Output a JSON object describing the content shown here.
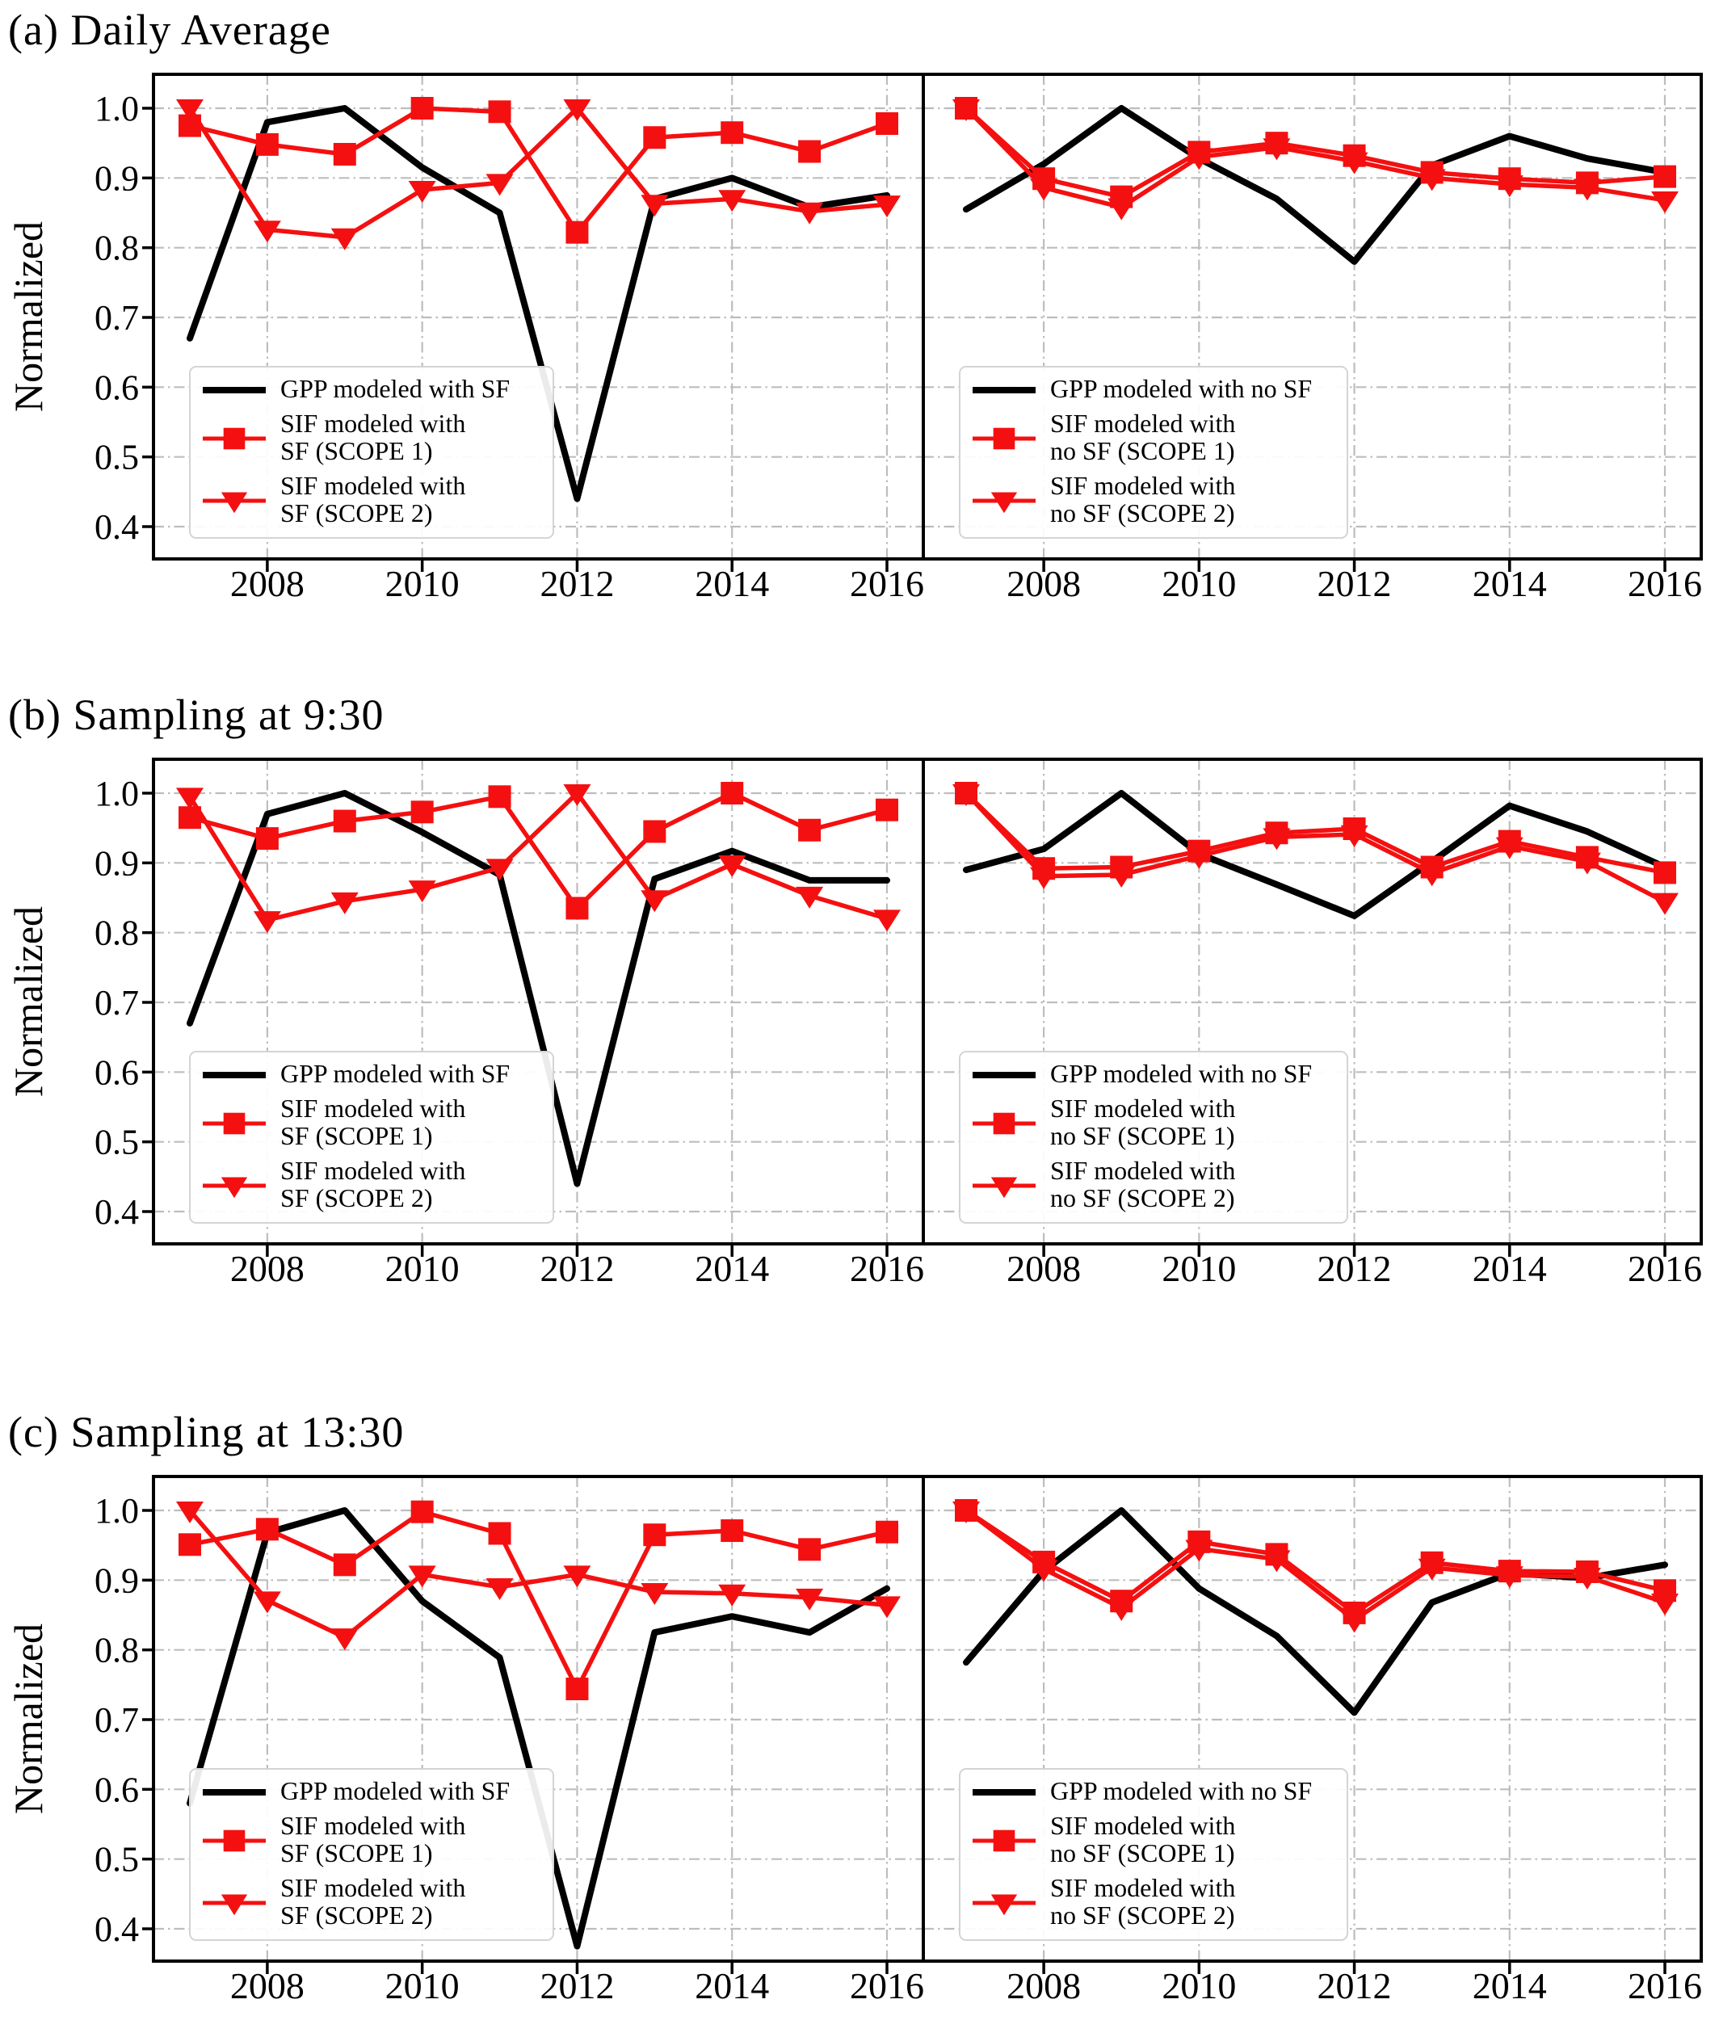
{
  "figure": {
    "ylabel": "Normalized",
    "yticks": [
      "1.0",
      "0.9",
      "0.8",
      "0.7",
      "0.6",
      "0.5",
      "0.4"
    ],
    "xticks": [
      2008,
      2010,
      2012,
      2014,
      2016
    ],
    "colors": {
      "gpp_line": "#000000",
      "sif_line": "#f41010",
      "grid": "#bdbdbd",
      "spine": "#000000",
      "legend_border": "#d4d4d4",
      "text": "#000000"
    },
    "grid": true,
    "grid_style": "dash-dot",
    "legend_position": "lower left"
  },
  "rows": [
    {
      "title": "(a) Daily Average"
    },
    {
      "title": "(b) Sampling at 9:30"
    },
    {
      "title": "(c) Sampling at 13:30"
    }
  ],
  "chart_data": [
    {
      "id": "a-left",
      "row": 0,
      "side": "left",
      "type": "line",
      "x": [
        2007,
        2008,
        2009,
        2010,
        2011,
        2012,
        2013,
        2014,
        2015,
        2016
      ],
      "xticks": [
        2008,
        2010,
        2012,
        2014,
        2016
      ],
      "yticks": [
        "1.0",
        "0.9",
        "0.8",
        "0.7",
        "0.6",
        "0.5",
        "0.4"
      ],
      "ylim": [
        0.354,
        1.049
      ],
      "ylabel": "Normalized",
      "series": [
        {
          "name": "GPP modeled with SF",
          "color": "#000000",
          "marker": "none",
          "line_width": 8,
          "values": [
            0.67,
            0.98,
            1.0,
            0.915,
            0.85,
            0.44,
            0.87,
            0.9,
            0.858,
            0.875
          ]
        },
        {
          "name": "SIF modeled with SF (SCOPE 2)",
          "color": "#f41010",
          "marker": "triangle-down",
          "line_width": 5.5,
          "values": [
            1.0,
            0.826,
            0.815,
            0.883,
            0.893,
            1.0,
            0.863,
            0.87,
            0.852,
            0.862
          ]
        },
        {
          "name": "SIF modeled with SF (SCOPE 1)",
          "color": "#f41010",
          "marker": "square",
          "line_width": 5.5,
          "values": [
            0.975,
            0.948,
            0.934,
            1.0,
            0.995,
            0.822,
            0.958,
            0.965,
            0.938,
            0.978
          ]
        }
      ],
      "legend": [
        {
          "series": 0,
          "lines": [
            "GPP modeled with SF"
          ]
        },
        {
          "series": 2,
          "lines": [
            "SIF modeled with",
            "SF (SCOPE 1)"
          ]
        },
        {
          "series": 1,
          "lines": [
            "SIF modeled with",
            "SF (SCOPE 2)"
          ]
        }
      ]
    },
    {
      "id": "a-right",
      "row": 0,
      "side": "right",
      "type": "line",
      "x": [
        2007,
        2008,
        2009,
        2010,
        2011,
        2012,
        2013,
        2014,
        2015,
        2016
      ],
      "xticks": [
        2008,
        2010,
        2012,
        2014,
        2016
      ],
      "yticks": [
        "1.0",
        "0.9",
        "0.8",
        "0.7",
        "0.6",
        "0.5",
        "0.4"
      ],
      "ylim": [
        0.354,
        1.049
      ],
      "series": [
        {
          "name": "GPP modeled with no SF",
          "color": "#000000",
          "marker": "none",
          "line_width": 8,
          "values": [
            0.855,
            0.92,
            1.0,
            0.928,
            0.87,
            0.78,
            0.918,
            0.96,
            0.928,
            0.908
          ]
        },
        {
          "name": "SIF modeled with no SF (SCOPE 2)",
          "color": "#f41010",
          "marker": "triangle-down",
          "line_width": 5.5,
          "values": [
            1.0,
            0.886,
            0.858,
            0.93,
            0.944,
            0.924,
            0.9,
            0.891,
            0.886,
            0.868
          ]
        },
        {
          "name": "SIF modeled with no SF (SCOPE 1)",
          "color": "#f41010",
          "marker": "square",
          "line_width": 5.5,
          "values": [
            1.0,
            0.899,
            0.873,
            0.937,
            0.95,
            0.932,
            0.908,
            0.899,
            0.893,
            0.902
          ]
        }
      ],
      "legend": [
        {
          "series": 0,
          "lines": [
            "GPP modeled with no SF"
          ]
        },
        {
          "series": 2,
          "lines": [
            "SIF modeled with",
            "no SF (SCOPE 1)"
          ]
        },
        {
          "series": 1,
          "lines": [
            "SIF modeled with",
            "no SF (SCOPE 2)"
          ]
        }
      ]
    },
    {
      "id": "b-left",
      "row": 1,
      "side": "left",
      "type": "line",
      "x": [
        2007,
        2008,
        2009,
        2010,
        2011,
        2012,
        2013,
        2014,
        2015,
        2016
      ],
      "xticks": [
        2008,
        2010,
        2012,
        2014,
        2016
      ],
      "yticks": [
        "1.0",
        "0.9",
        "0.8",
        "0.7",
        "0.6",
        "0.5",
        "0.4"
      ],
      "ylim": [
        0.354,
        1.049
      ],
      "ylabel": "Normalized",
      "series": [
        {
          "name": "GPP modeled with SF",
          "color": "#000000",
          "marker": "none",
          "line_width": 8,
          "values": [
            0.67,
            0.97,
            1.0,
            0.944,
            0.883,
            0.44,
            0.877,
            0.917,
            0.875,
            0.875
          ]
        },
        {
          "name": "SIF modeled with SF (SCOPE 2)",
          "color": "#f41010",
          "marker": "triangle-down",
          "line_width": 5.5,
          "values": [
            0.995,
            0.818,
            0.845,
            0.862,
            0.893,
            1.0,
            0.848,
            0.898,
            0.853,
            0.82
          ]
        },
        {
          "name": "SIF modeled with SF (SCOPE 1)",
          "color": "#f41010",
          "marker": "square",
          "line_width": 5.5,
          "values": [
            0.965,
            0.935,
            0.96,
            0.973,
            0.995,
            0.835,
            0.945,
            1.0,
            0.947,
            0.976
          ]
        }
      ],
      "legend": [
        {
          "series": 0,
          "lines": [
            "GPP modeled with SF"
          ]
        },
        {
          "series": 2,
          "lines": [
            "SIF modeled with",
            "SF (SCOPE 1)"
          ]
        },
        {
          "series": 1,
          "lines": [
            "SIF modeled with",
            "SF (SCOPE 2)"
          ]
        }
      ]
    },
    {
      "id": "b-right",
      "row": 1,
      "side": "right",
      "type": "line",
      "x": [
        2007,
        2008,
        2009,
        2010,
        2011,
        2012,
        2013,
        2014,
        2015,
        2016
      ],
      "xticks": [
        2008,
        2010,
        2012,
        2014,
        2016
      ],
      "yticks": [
        "1.0",
        "0.9",
        "0.8",
        "0.7",
        "0.6",
        "0.5",
        "0.4"
      ],
      "ylim": [
        0.354,
        1.049
      ],
      "series": [
        {
          "name": "GPP modeled with no SF",
          "color": "#000000",
          "marker": "none",
          "line_width": 8,
          "values": [
            0.89,
            0.92,
            1.0,
            0.913,
            0.869,
            0.824,
            0.902,
            0.982,
            0.945,
            0.894
          ]
        },
        {
          "name": "SIF modeled with no SF (SCOPE 2)",
          "color": "#f41010",
          "marker": "triangle-down",
          "line_width": 5.5,
          "values": [
            1.0,
            0.881,
            0.883,
            0.91,
            0.937,
            0.941,
            0.885,
            0.924,
            0.902,
            0.844
          ]
        },
        {
          "name": "SIF modeled with no SF (SCOPE 1)",
          "color": "#f41010",
          "marker": "square",
          "line_width": 5.5,
          "values": [
            1.0,
            0.892,
            0.894,
            0.917,
            0.943,
            0.949,
            0.894,
            0.931,
            0.908,
            0.886
          ]
        }
      ],
      "legend": [
        {
          "series": 0,
          "lines": [
            "GPP modeled with no SF"
          ]
        },
        {
          "series": 2,
          "lines": [
            "SIF modeled with",
            "no SF (SCOPE 1)"
          ]
        },
        {
          "series": 1,
          "lines": [
            "SIF modeled with",
            "no SF (SCOPE 2)"
          ]
        }
      ]
    },
    {
      "id": "c-left",
      "row": 2,
      "side": "left",
      "type": "line",
      "x": [
        2007,
        2008,
        2009,
        2010,
        2011,
        2012,
        2013,
        2014,
        2015,
        2016
      ],
      "xticks": [
        2008,
        2010,
        2012,
        2014,
        2016
      ],
      "yticks": [
        "1.0",
        "0.9",
        "0.8",
        "0.7",
        "0.6",
        "0.5",
        "0.4"
      ],
      "ylim": [
        0.354,
        1.049
      ],
      "ylabel": "Normalized",
      "series": [
        {
          "name": "GPP modeled with SF",
          "color": "#000000",
          "marker": "none",
          "line_width": 8,
          "values": [
            0.58,
            0.968,
            1.0,
            0.87,
            0.789,
            0.375,
            0.825,
            0.848,
            0.825,
            0.888
          ]
        },
        {
          "name": "SIF modeled with SF (SCOPE 2)",
          "color": "#f41010",
          "marker": "triangle-down",
          "line_width": 5.5,
          "values": [
            1.0,
            0.871,
            0.818,
            0.908,
            0.89,
            0.908,
            0.883,
            0.881,
            0.875,
            0.864
          ]
        },
        {
          "name": "SIF modeled with SF (SCOPE 1)",
          "color": "#f41010",
          "marker": "square",
          "line_width": 5.5,
          "values": [
            0.951,
            0.973,
            0.922,
            0.998,
            0.967,
            0.744,
            0.965,
            0.971,
            0.944,
            0.969
          ]
        }
      ],
      "legend": [
        {
          "series": 0,
          "lines": [
            "GPP modeled with SF"
          ]
        },
        {
          "series": 2,
          "lines": [
            "SIF modeled with",
            "SF (SCOPE 1)"
          ]
        },
        {
          "series": 1,
          "lines": [
            "SIF modeled with",
            "SF (SCOPE 2)"
          ]
        }
      ]
    },
    {
      "id": "c-right",
      "row": 2,
      "side": "right",
      "type": "line",
      "x": [
        2007,
        2008,
        2009,
        2010,
        2011,
        2012,
        2013,
        2014,
        2015,
        2016
      ],
      "xticks": [
        2008,
        2010,
        2012,
        2014,
        2016
      ],
      "yticks": [
        "1.0",
        "0.9",
        "0.8",
        "0.7",
        "0.6",
        "0.5",
        "0.4"
      ],
      "ylim": [
        0.354,
        1.049
      ],
      "series": [
        {
          "name": "GPP modeled with no SF",
          "color": "#000000",
          "marker": "none",
          "line_width": 8,
          "values": [
            0.782,
            0.913,
            1.0,
            0.888,
            0.82,
            0.71,
            0.868,
            0.91,
            0.903,
            0.922
          ]
        },
        {
          "name": "SIF modeled with no SF (SCOPE 2)",
          "color": "#f41010",
          "marker": "triangle-down",
          "line_width": 5.5,
          "values": [
            1.0,
            0.916,
            0.86,
            0.945,
            0.93,
            0.843,
            0.918,
            0.907,
            0.905,
            0.868
          ]
        },
        {
          "name": "SIF modeled with no SF (SCOPE 1)",
          "color": "#f41010",
          "marker": "square",
          "line_width": 5.5,
          "values": [
            1.0,
            0.926,
            0.87,
            0.955,
            0.937,
            0.853,
            0.925,
            0.913,
            0.912,
            0.885
          ]
        }
      ],
      "legend": [
        {
          "series": 0,
          "lines": [
            "GPP modeled with no SF"
          ]
        },
        {
          "series": 2,
          "lines": [
            "SIF modeled with",
            "no SF (SCOPE 1)"
          ]
        },
        {
          "series": 1,
          "lines": [
            "SIF modeled with",
            "no SF (SCOPE 2)"
          ]
        }
      ]
    }
  ]
}
